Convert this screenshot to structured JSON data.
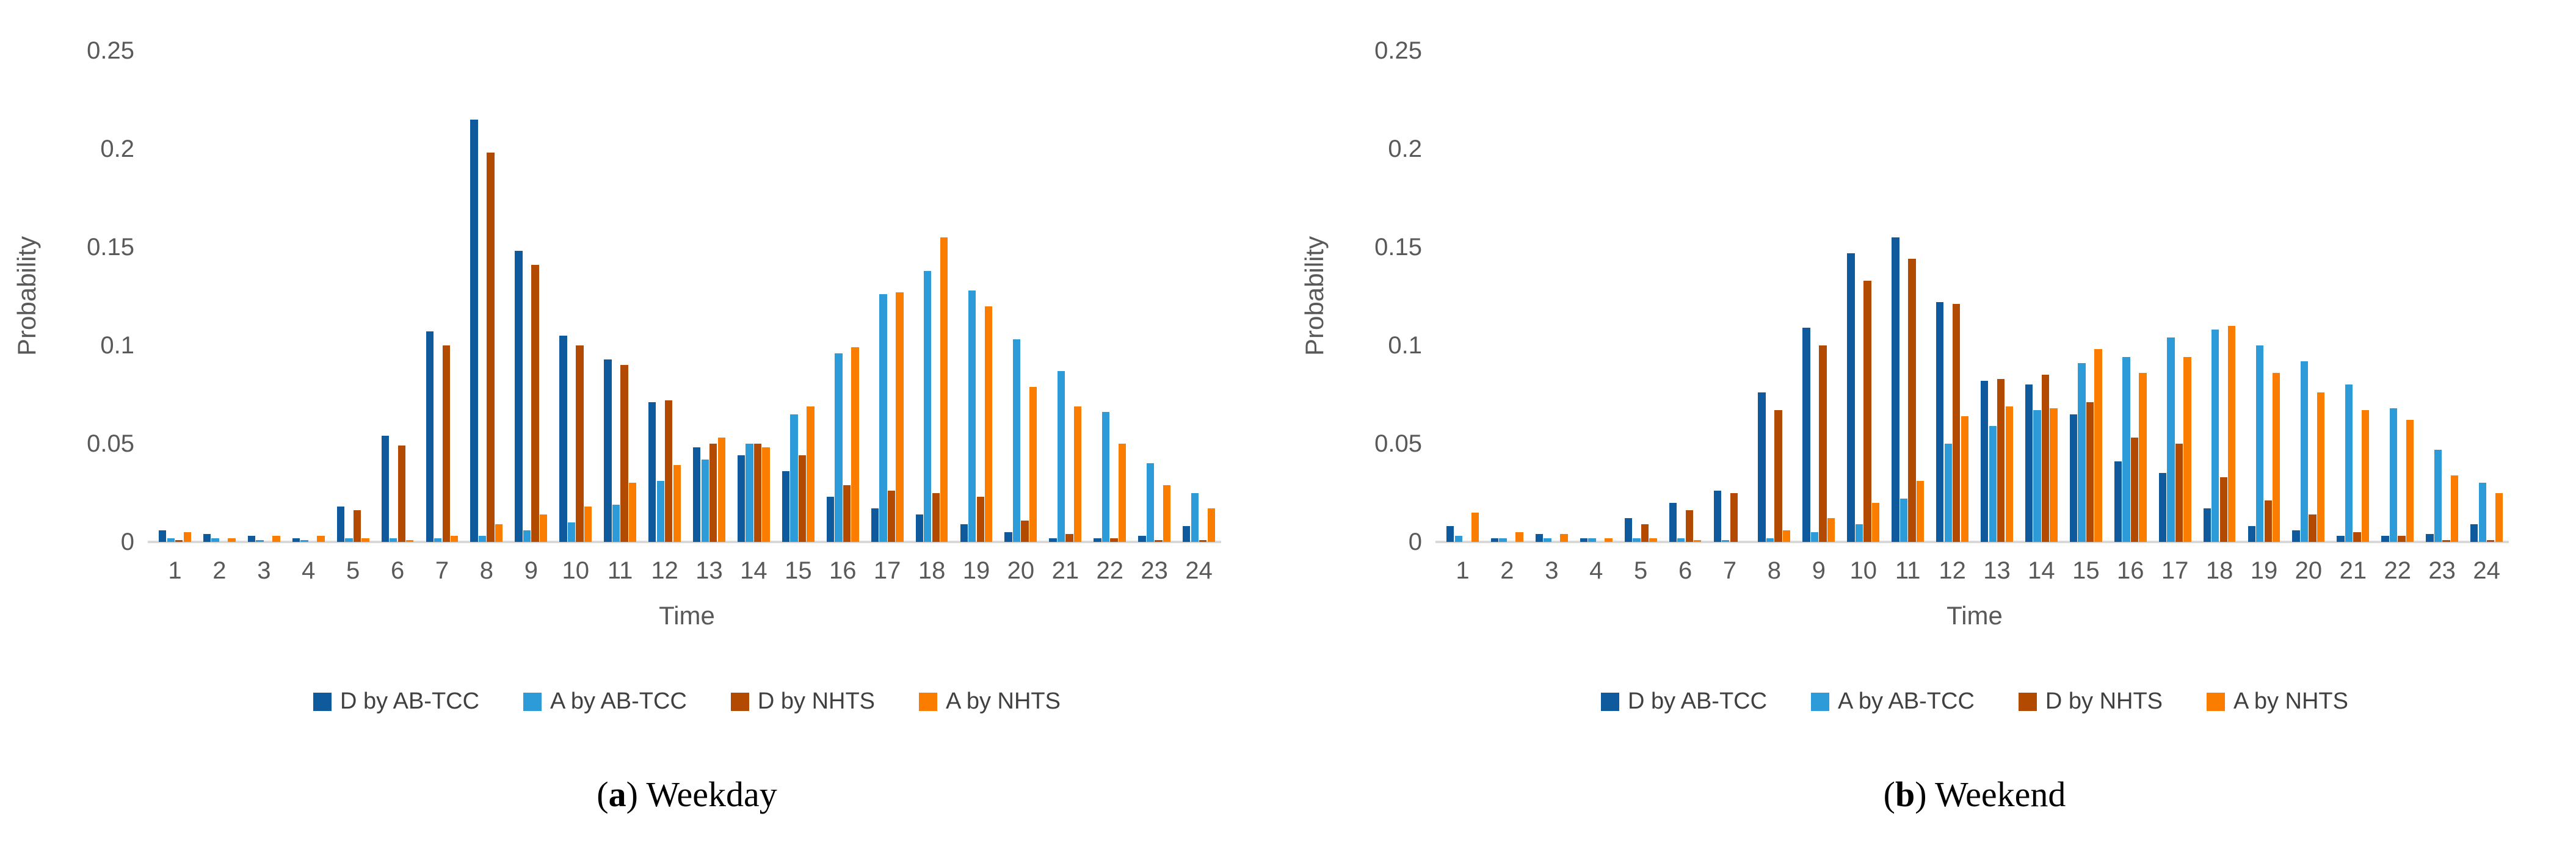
{
  "colors": {
    "series": [
      "#0f5a9c",
      "#2e9bd9",
      "#b24a02",
      "#fa7d00"
    ],
    "axis_line": "#d9d9d9",
    "tick_text": "#595959",
    "caption_text": "#000000"
  },
  "legend_labels": [
    "D by AB-TCC",
    "A by AB-TCC",
    "D by NHTS",
    "A by NHTS"
  ],
  "chart_data": [
    {
      "type": "bar",
      "title": "",
      "caption_pre": "(",
      "caption_letter": "a",
      "caption_post": ") ",
      "caption_label": "Weekday",
      "xlabel": "Time",
      "ylabel": "Probability",
      "ylim": [
        0,
        0.25
      ],
      "yticks": [
        "0",
        "0.05",
        "0.1",
        "0.15",
        "0.2",
        "0.25"
      ],
      "ytick_values": [
        0,
        0.05,
        0.1,
        0.15,
        0.2,
        0.25
      ],
      "grid": false,
      "legend_position": "bottom",
      "categories": [
        "1",
        "2",
        "3",
        "4",
        "5",
        "6",
        "7",
        "8",
        "9",
        "10",
        "11",
        "12",
        "13",
        "14",
        "15",
        "16",
        "17",
        "18",
        "19",
        "20",
        "21",
        "22",
        "23",
        "24"
      ],
      "series": [
        {
          "name": "D by AB-TCC",
          "values": [
            0.006,
            0.004,
            0.003,
            0.002,
            0.018,
            0.054,
            0.107,
            0.215,
            0.148,
            0.105,
            0.093,
            0.071,
            0.048,
            0.044,
            0.036,
            0.023,
            0.017,
            0.014,
            0.009,
            0.005,
            0.002,
            0.002,
            0.003,
            0.008
          ]
        },
        {
          "name": "A by AB-TCC",
          "values": [
            0.002,
            0.002,
            0.001,
            0.001,
            0.002,
            0.002,
            0.002,
            0.003,
            0.006,
            0.01,
            0.019,
            0.031,
            0.042,
            0.05,
            0.065,
            0.096,
            0.126,
            0.138,
            0.128,
            0.103,
            0.087,
            0.066,
            0.04,
            0.025
          ]
        },
        {
          "name": "D by NHTS",
          "values": [
            0.001,
            0.0,
            0.0,
            0.0,
            0.016,
            0.049,
            0.1,
            0.198,
            0.141,
            0.1,
            0.09,
            0.072,
            0.05,
            0.05,
            0.044,
            0.029,
            0.026,
            0.025,
            0.023,
            0.011,
            0.004,
            0.002,
            0.001,
            0.001
          ]
        },
        {
          "name": "A by NHTS",
          "values": [
            0.005,
            0.002,
            0.003,
            0.003,
            0.002,
            0.001,
            0.003,
            0.009,
            0.014,
            0.018,
            0.03,
            0.039,
            0.053,
            0.048,
            0.069,
            0.099,
            0.127,
            0.155,
            0.12,
            0.079,
            0.069,
            0.05,
            0.029,
            0.017
          ]
        }
      ]
    },
    {
      "type": "bar",
      "title": "",
      "caption_pre": "(",
      "caption_letter": "b",
      "caption_post": ") ",
      "caption_label": "Weekend",
      "xlabel": "Time",
      "ylabel": "Probability",
      "ylim": [
        0,
        0.25
      ],
      "yticks": [
        "0",
        "0.05",
        "0.1",
        "0.15",
        "0.2",
        "0.25"
      ],
      "ytick_values": [
        0,
        0.05,
        0.1,
        0.15,
        0.2,
        0.25
      ],
      "grid": false,
      "legend_position": "bottom",
      "categories": [
        "1",
        "2",
        "3",
        "4",
        "5",
        "6",
        "7",
        "8",
        "9",
        "10",
        "11",
        "12",
        "13",
        "14",
        "15",
        "16",
        "17",
        "18",
        "19",
        "20",
        "21",
        "22",
        "23",
        "24"
      ],
      "series": [
        {
          "name": "D by AB-TCC",
          "values": [
            0.008,
            0.002,
            0.004,
            0.002,
            0.012,
            0.02,
            0.026,
            0.076,
            0.109,
            0.147,
            0.155,
            0.122,
            0.082,
            0.08,
            0.065,
            0.041,
            0.035,
            0.017,
            0.008,
            0.006,
            0.003,
            0.003,
            0.004,
            0.009
          ]
        },
        {
          "name": "A by AB-TCC",
          "values": [
            0.003,
            0.002,
            0.002,
            0.002,
            0.002,
            0.002,
            0.001,
            0.002,
            0.005,
            0.009,
            0.022,
            0.05,
            0.059,
            0.067,
            0.091,
            0.094,
            0.104,
            0.108,
            0.1,
            0.092,
            0.08,
            0.068,
            0.047,
            0.03
          ]
        },
        {
          "name": "D by NHTS",
          "values": [
            0.0,
            0.0,
            0.0,
            0.0,
            0.009,
            0.016,
            0.025,
            0.067,
            0.1,
            0.133,
            0.144,
            0.121,
            0.083,
            0.085,
            0.071,
            0.053,
            0.05,
            0.033,
            0.021,
            0.014,
            0.005,
            0.003,
            0.001,
            0.001
          ]
        },
        {
          "name": "A by NHTS",
          "values": [
            0.015,
            0.005,
            0.004,
            0.002,
            0.002,
            0.001,
            0.0,
            0.006,
            0.012,
            0.02,
            0.031,
            0.064,
            0.069,
            0.068,
            0.098,
            0.086,
            0.094,
            0.11,
            0.086,
            0.076,
            0.067,
            0.062,
            0.034,
            0.025
          ]
        }
      ]
    }
  ]
}
